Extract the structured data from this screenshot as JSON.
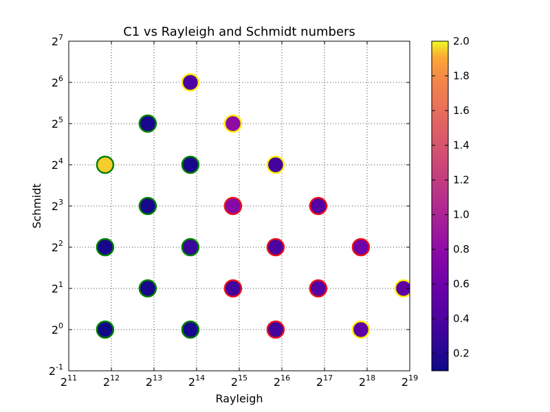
{
  "chart_data": {
    "type": "scatter",
    "title": "C1 vs Rayleigh and Schmidt numbers",
    "xlabel": "Rayleigh",
    "ylabel": "Schmidt",
    "x_scale": "log2",
    "y_scale": "log2",
    "xlim": [
      2048,
      524288
    ],
    "ylim": [
      0.5,
      128
    ],
    "x_ticks": [
      {
        "base": "2",
        "exp": "11"
      },
      {
        "base": "2",
        "exp": "12"
      },
      {
        "base": "2",
        "exp": "13"
      },
      {
        "base": "2",
        "exp": "14"
      },
      {
        "base": "2",
        "exp": "15"
      },
      {
        "base": "2",
        "exp": "16"
      },
      {
        "base": "2",
        "exp": "17"
      },
      {
        "base": "2",
        "exp": "18"
      },
      {
        "base": "2",
        "exp": "19"
      }
    ],
    "y_ticks": [
      {
        "base": "2",
        "exp": "-1"
      },
      {
        "base": "2",
        "exp": "0"
      },
      {
        "base": "2",
        "exp": "1"
      },
      {
        "base": "2",
        "exp": "2"
      },
      {
        "base": "2",
        "exp": "3"
      },
      {
        "base": "2",
        "exp": "4"
      },
      {
        "base": "2",
        "exp": "5"
      },
      {
        "base": "2",
        "exp": "6"
      },
      {
        "base": "2",
        "exp": "7"
      }
    ],
    "grid": true,
    "colormap": "plasma",
    "colorbar": {
      "range": [
        0.1,
        2.0
      ],
      "ticks": [
        "0.2",
        "0.4",
        "0.6",
        "0.8",
        "1.0",
        "1.2",
        "1.4",
        "1.6",
        "1.8",
        "2.0"
      ]
    },
    "edge_colors": {
      "green": "#008000",
      "red": "#e8101a",
      "yellow": "#ffee00"
    },
    "points": [
      {
        "x": 3700,
        "y": 1,
        "c": 0.12,
        "edge": "green"
      },
      {
        "x": 3700,
        "y": 4,
        "c": 0.15,
        "edge": "green"
      },
      {
        "x": 3700,
        "y": 16,
        "c": 1.95,
        "edge": "green"
      },
      {
        "x": 7400,
        "y": 2,
        "c": 0.15,
        "edge": "green"
      },
      {
        "x": 7400,
        "y": 8,
        "c": 0.15,
        "edge": "green"
      },
      {
        "x": 7400,
        "y": 32,
        "c": 0.15,
        "edge": "green"
      },
      {
        "x": 14800,
        "y": 1,
        "c": 0.15,
        "edge": "green"
      },
      {
        "x": 14800,
        "y": 4,
        "c": 0.3,
        "edge": "green"
      },
      {
        "x": 14800,
        "y": 16,
        "c": 0.15,
        "edge": "green"
      },
      {
        "x": 14800,
        "y": 64,
        "c": 0.4,
        "edge": "yellow"
      },
      {
        "x": 29600,
        "y": 2,
        "c": 0.35,
        "edge": "red"
      },
      {
        "x": 29600,
        "y": 8,
        "c": 0.75,
        "edge": "red"
      },
      {
        "x": 29600,
        "y": 32,
        "c": 0.8,
        "edge": "yellow"
      },
      {
        "x": 59200,
        "y": 1,
        "c": 0.35,
        "edge": "red"
      },
      {
        "x": 59200,
        "y": 4,
        "c": 0.4,
        "edge": "red"
      },
      {
        "x": 59200,
        "y": 16,
        "c": 0.35,
        "edge": "yellow"
      },
      {
        "x": 118400,
        "y": 2,
        "c": 0.45,
        "edge": "red"
      },
      {
        "x": 118400,
        "y": 8,
        "c": 0.45,
        "edge": "red"
      },
      {
        "x": 236800,
        "y": 1,
        "c": 0.5,
        "edge": "yellow"
      },
      {
        "x": 236800,
        "y": 4,
        "c": 0.6,
        "edge": "red"
      },
      {
        "x": 473600,
        "y": 2,
        "c": 0.5,
        "edge": "yellow"
      }
    ]
  }
}
